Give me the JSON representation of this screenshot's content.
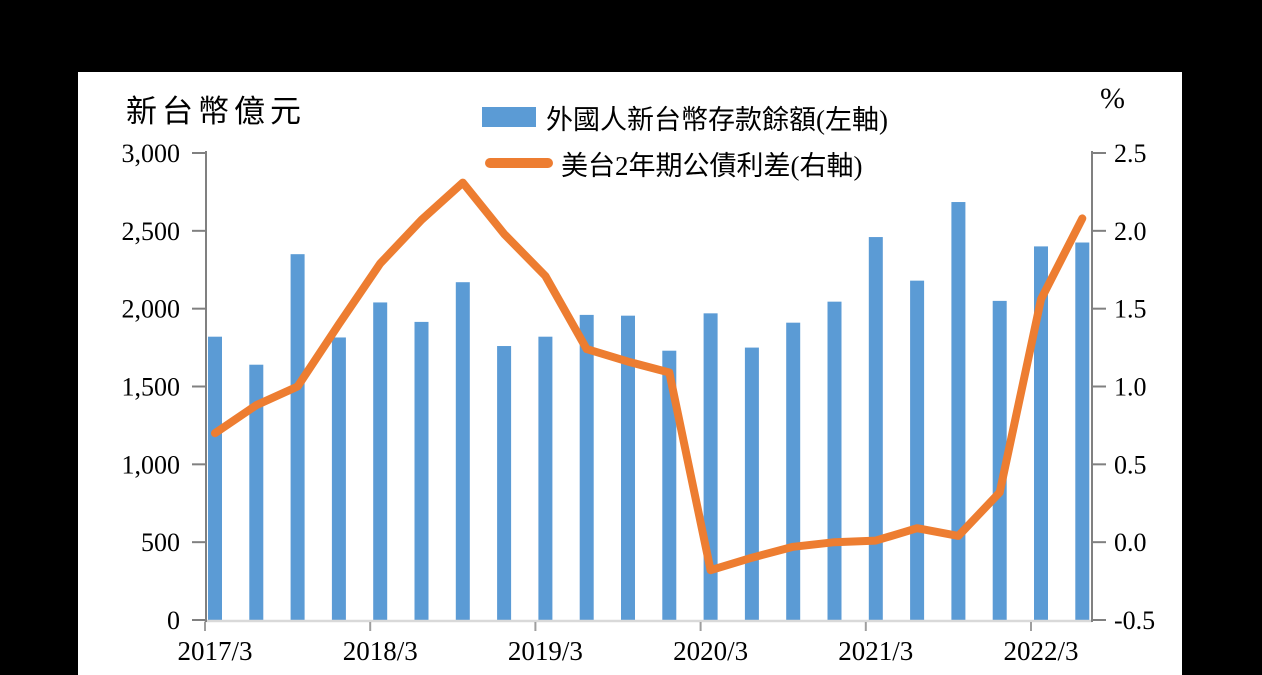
{
  "units": {
    "left_axis_unit": "新台幣億元",
    "right_axis_unit": "%"
  },
  "legend": {
    "bars_label": "外國人新台幣存款餘額(左軸)",
    "line_label": "美台2年期公債利差(右軸)"
  },
  "colors": {
    "bar": "#5B9BD5",
    "line": "#ED7D31",
    "axis": "#808080",
    "baseline": "#D9D9D9",
    "tick": "#9E9E9E",
    "text": "#000000",
    "panel_bg": "#FFFFFF",
    "canvas_bg": "#000000"
  },
  "chart_data": {
    "type": "bar",
    "subtype": "bar+line dual-axis combo",
    "categories": [
      "2017/3",
      "2017/6",
      "2017/9",
      "2017/12",
      "2018/3",
      "2018/6",
      "2018/9",
      "2018/12",
      "2019/3",
      "2019/6",
      "2019/9",
      "2019/12",
      "2020/3",
      "2020/6",
      "2020/9",
      "2020/12",
      "2021/3",
      "2021/6",
      "2021/9",
      "2021/12",
      "2022/3",
      "2022/6"
    ],
    "series": [
      {
        "name": "外國人新台幣存款餘額(左軸)",
        "type": "bar",
        "axis": "left",
        "values": [
          1820,
          1640,
          2350,
          1815,
          2040,
          1915,
          2170,
          1760,
          1820,
          1960,
          1955,
          1730,
          1970,
          1750,
          1910,
          2045,
          2460,
          2180,
          2685,
          2050,
          2400,
          2425
        ]
      },
      {
        "name": "美台2年期公債利差(右軸)",
        "type": "line",
        "axis": "right",
        "values": [
          0.7,
          0.88,
          1.0,
          1.4,
          1.79,
          2.07,
          2.31,
          1.98,
          1.71,
          1.24,
          1.16,
          1.09,
          -0.18,
          -0.1,
          -0.03,
          0.0,
          0.01,
          0.09,
          0.04,
          0.32,
          1.56,
          2.08
        ]
      }
    ],
    "left_axis": {
      "label": "新台幣億元",
      "min": 0,
      "max": 3000,
      "step": 500,
      "tick_labels": [
        "0",
        "500",
        "1,000",
        "1,500",
        "2,000",
        "2,500",
        "3,000"
      ]
    },
    "right_axis": {
      "label": "%",
      "min": -0.5,
      "max": 2.5,
      "step": 0.5,
      "tick_labels": [
        "-0.5",
        "0.0",
        "0.5",
        "1.0",
        "1.5",
        "2.0",
        "2.5"
      ]
    },
    "x_axis": {
      "tick_interval": 4,
      "tick_labels": [
        "2017/3",
        "2018/3",
        "2019/3",
        "2020/3",
        "2021/3",
        "2022/3"
      ]
    },
    "grid": false,
    "legend_position": "top-center"
  }
}
